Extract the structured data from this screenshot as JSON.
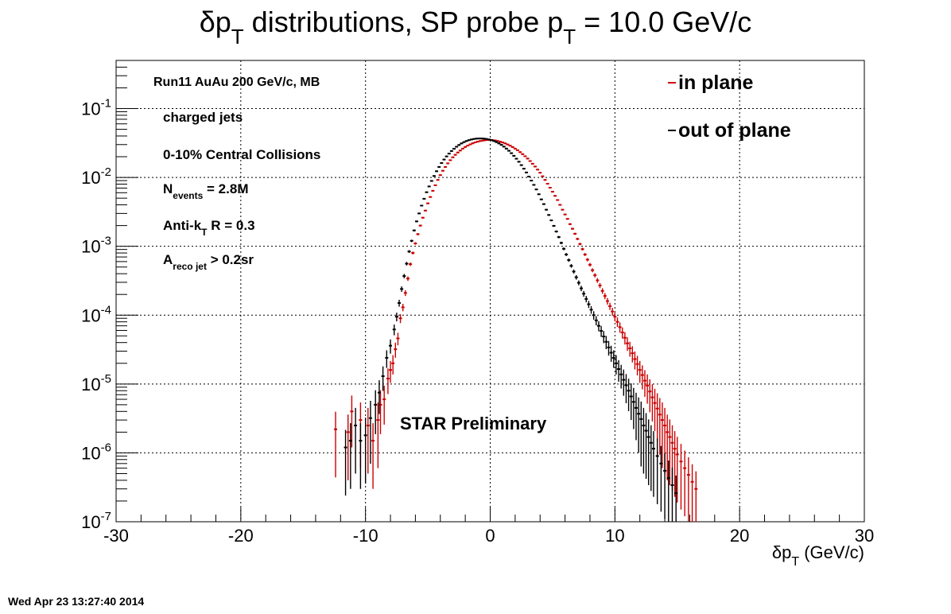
{
  "timestamp": "Wed Apr 23 13:27:40 2014",
  "chart_data": {
    "type": "scatter",
    "title": {
      "main": "δp",
      "sub": "T",
      "rest": " distributions, SP probe p",
      "sub2": "T",
      "tail": " = 10.0 GeV/c"
    },
    "xlabel": {
      "main": "δp",
      "sub": "T",
      "tail": " (GeV/c)"
    },
    "ylabel": "",
    "xlim": [
      -30,
      30
    ],
    "ylim": [
      1e-07,
      0.5
    ],
    "yscale": "log",
    "grid": true,
    "x_ticks": [
      "-30",
      "-20",
      "-10",
      "0",
      "10",
      "20",
      "30"
    ],
    "y_ticks": [
      {
        "base": "10",
        "exp": "-7"
      },
      {
        "base": "10",
        "exp": "-6"
      },
      {
        "base": "10",
        "exp": "-5"
      },
      {
        "base": "10",
        "exp": "-4"
      },
      {
        "base": "10",
        "exp": "-3"
      },
      {
        "base": "10",
        "exp": "-2"
      },
      {
        "base": "10",
        "exp": "-1"
      }
    ],
    "info_lines": [
      {
        "text": "Run11 AuAu 200 GeV/c, MB"
      },
      {
        "text": "charged jets"
      },
      {
        "text": "0-10% Central Collisions"
      },
      {
        "text": "N",
        "sub": "events",
        "tail": " = 2.8M"
      },
      {
        "text": "Anti-k",
        "sub": "T",
        "tail": "   R = 0.3"
      },
      {
        "text": "A",
        "sub": "reco jet",
        "tail": " > 0.2sr"
      }
    ],
    "annotation": "STAR Preliminary",
    "legend_position": "top-right",
    "series": [
      {
        "name": "in plane",
        "color": "#cc0000",
        "points": [
          [
            -12.4,
            2.2e-06
          ],
          [
            -11.4,
            2e-06
          ],
          [
            -11.1,
            4e-06
          ],
          [
            -10.4,
            3e-06
          ],
          [
            -9.8,
            2.5e-06
          ],
          [
            -9.4,
            1.5e-06
          ],
          [
            -9.0,
            3e-06
          ],
          [
            -8.8,
            5e-06
          ],
          [
            -8.5,
            6e-06
          ],
          [
            -8.2,
            1.2e-05
          ],
          [
            -8.0,
            1.6e-05
          ],
          [
            -7.8,
            2e-05
          ],
          [
            -7.6,
            3.2e-05
          ],
          [
            -7.4,
            4.6e-05
          ],
          [
            -7.2,
            9e-05
          ],
          [
            -7.0,
            0.00013
          ],
          [
            -6.8,
            0.00021
          ],
          [
            -6.6,
            0.00034
          ],
          [
            -6.4,
            0.00055
          ],
          [
            -6.2,
            0.0008
          ],
          [
            -6.0,
            0.0011
          ],
          [
            -5.8,
            0.0015
          ],
          [
            -5.6,
            0.002
          ],
          [
            -5.4,
            0.0026
          ],
          [
            -5.2,
            0.0033
          ],
          [
            -5.0,
            0.0042
          ],
          [
            -4.8,
            0.0052
          ],
          [
            -4.6,
            0.0064
          ],
          [
            -4.4,
            0.0077
          ],
          [
            -4.2,
            0.0092
          ],
          [
            -4.0,
            0.0108
          ],
          [
            -3.8,
            0.0125
          ],
          [
            -3.6,
            0.0142
          ],
          [
            -3.4,
            0.016
          ],
          [
            -3.2,
            0.0178
          ],
          [
            -3.0,
            0.0196
          ],
          [
            -2.8,
            0.0213
          ],
          [
            -2.6,
            0.023
          ],
          [
            -2.4,
            0.0246
          ],
          [
            -2.2,
            0.0262
          ],
          [
            -2.0,
            0.0277
          ],
          [
            -1.8,
            0.029
          ],
          [
            -1.6,
            0.0302
          ],
          [
            -1.4,
            0.0313
          ],
          [
            -1.2,
            0.0323
          ],
          [
            -1.0,
            0.0331
          ],
          [
            -0.8,
            0.0338
          ],
          [
            -0.6,
            0.0343
          ],
          [
            -0.4,
            0.0347
          ],
          [
            -0.2,
            0.035
          ],
          [
            0.0,
            0.035
          ],
          [
            0.2,
            0.0348
          ],
          [
            0.4,
            0.0344
          ],
          [
            0.6,
            0.0338
          ],
          [
            0.8,
            0.033
          ],
          [
            1.0,
            0.0322
          ],
          [
            1.2,
            0.0312
          ],
          [
            1.4,
            0.0301
          ],
          [
            1.6,
            0.0289
          ],
          [
            1.8,
            0.0276
          ],
          [
            2.0,
            0.0262
          ],
          [
            2.2,
            0.0248
          ],
          [
            2.4,
            0.0233
          ],
          [
            2.6,
            0.0218
          ],
          [
            2.8,
            0.0203
          ],
          [
            3.0,
            0.0188
          ],
          [
            3.2,
            0.0173
          ],
          [
            3.4,
            0.0158
          ],
          [
            3.6,
            0.0144
          ],
          [
            3.8,
            0.013
          ],
          [
            4.0,
            0.0117
          ],
          [
            4.2,
            0.0104
          ],
          [
            4.4,
            0.0092
          ],
          [
            4.6,
            0.0081
          ],
          [
            4.8,
            0.0071
          ],
          [
            5.0,
            0.0062
          ],
          [
            5.2,
            0.0054
          ],
          [
            5.4,
            0.0047
          ],
          [
            5.6,
            0.004
          ],
          [
            5.8,
            0.0034
          ],
          [
            6.0,
            0.0029
          ],
          [
            6.2,
            0.0025
          ],
          [
            6.4,
            0.0021
          ],
          [
            6.6,
            0.0018
          ],
          [
            6.8,
            0.00152
          ],
          [
            7.0,
            0.00128
          ],
          [
            7.2,
            0.00108
          ],
          [
            7.4,
            0.00091
          ],
          [
            7.6,
            0.00076
          ],
          [
            7.8,
            0.00064
          ],
          [
            8.0,
            0.00054
          ],
          [
            8.2,
            0.00045
          ],
          [
            8.4,
            0.00038
          ],
          [
            8.6,
            0.00032
          ],
          [
            8.8,
            0.00027
          ],
          [
            9.0,
            0.000225
          ],
          [
            9.2,
            0.00019
          ],
          [
            9.4,
            0.00016
          ],
          [
            9.6,
            0.000135
          ],
          [
            9.8,
            0.000113
          ],
          [
            10.0,
            9.5e-05
          ],
          [
            10.2,
            8e-05
          ],
          [
            10.4,
            6.7e-05
          ],
          [
            10.6,
            5.6e-05
          ],
          [
            10.8,
            4.7e-05
          ],
          [
            11.0,
            3.9e-05
          ],
          [
            11.2,
            3.3e-05
          ],
          [
            11.4,
            2.8e-05
          ],
          [
            11.6,
            2.3e-05
          ],
          [
            11.8,
            1.95e-05
          ],
          [
            12.0,
            1.6e-05
          ],
          [
            12.2,
            1.35e-05
          ],
          [
            12.4,
            1.12e-05
          ],
          [
            12.6,
            9.5e-06
          ],
          [
            12.8,
            7.8e-06
          ],
          [
            13.0,
            6.4e-06
          ],
          [
            13.2,
            5.3e-06
          ],
          [
            13.4,
            4.4e-06
          ],
          [
            13.6,
            3.6e-06
          ],
          [
            13.8,
            3e-06
          ],
          [
            14.0,
            2.5e-06
          ],
          [
            14.2,
            2e-06
          ],
          [
            14.4,
            1.7e-06
          ],
          [
            14.6,
            1.4e-06
          ],
          [
            14.8,
            1.15e-06
          ],
          [
            15.0,
            9.5e-07
          ],
          [
            15.3,
            7.5e-07
          ],
          [
            15.6,
            6e-07
          ],
          [
            15.9,
            4.8e-07
          ],
          [
            16.2,
            3.8e-07
          ],
          [
            16.5,
            3e-07
          ]
        ]
      },
      {
        "name": "out of plane",
        "color": "#000000",
        "points": [
          [
            -11.6,
            1.2e-06
          ],
          [
            -11.2,
            1.5e-06
          ],
          [
            -10.8,
            2.5e-06
          ],
          [
            -10.4,
            1.5e-06
          ],
          [
            -10.0,
            1.8e-06
          ],
          [
            -9.6,
            3.2e-06
          ],
          [
            -9.2,
            5e-06
          ],
          [
            -8.9,
            7.5e-06
          ],
          [
            -8.6,
            1.3e-05
          ],
          [
            -8.3,
            2.4e-05
          ],
          [
            -8.0,
            3.6e-05
          ],
          [
            -7.7,
            6.2e-05
          ],
          [
            -7.5,
            9.5e-05
          ],
          [
            -7.3,
            0.00015
          ],
          [
            -7.1,
            0.00024
          ],
          [
            -6.9,
            0.00037
          ],
          [
            -6.7,
            0.00056
          ],
          [
            -6.5,
            0.00084
          ],
          [
            -6.3,
            0.0012
          ],
          [
            -6.1,
            0.0017
          ],
          [
            -5.9,
            0.0023
          ],
          [
            -5.7,
            0.003
          ],
          [
            -5.5,
            0.0039
          ],
          [
            -5.3,
            0.0049
          ],
          [
            -5.1,
            0.0061
          ],
          [
            -4.9,
            0.0074
          ],
          [
            -4.7,
            0.0089
          ],
          [
            -4.5,
            0.0105
          ],
          [
            -4.3,
            0.0123
          ],
          [
            -4.1,
            0.0142
          ],
          [
            -3.9,
            0.0162
          ],
          [
            -3.7,
            0.0182
          ],
          [
            -3.5,
            0.0202
          ],
          [
            -3.3,
            0.0222
          ],
          [
            -3.1,
            0.0242
          ],
          [
            -2.9,
            0.0261
          ],
          [
            -2.7,
            0.0279
          ],
          [
            -2.5,
            0.0296
          ],
          [
            -2.3,
            0.0312
          ],
          [
            -2.1,
            0.0326
          ],
          [
            -1.9,
            0.0338
          ],
          [
            -1.7,
            0.0348
          ],
          [
            -1.5,
            0.0356
          ],
          [
            -1.3,
            0.0362
          ],
          [
            -1.1,
            0.0366
          ],
          [
            -0.9,
            0.0368
          ],
          [
            -0.7,
            0.0368
          ],
          [
            -0.5,
            0.0366
          ],
          [
            -0.3,
            0.0362
          ],
          [
            -0.1,
            0.0356
          ],
          [
            0.1,
            0.0348
          ],
          [
            0.3,
            0.0338
          ],
          [
            0.5,
            0.0326
          ],
          [
            0.7,
            0.0312
          ],
          [
            0.9,
            0.0297
          ],
          [
            1.1,
            0.028
          ],
          [
            1.3,
            0.0262
          ],
          [
            1.5,
            0.0244
          ],
          [
            1.7,
            0.0225
          ],
          [
            1.9,
            0.0206
          ],
          [
            2.1,
            0.0187
          ],
          [
            2.3,
            0.0169
          ],
          [
            2.5,
            0.0151
          ],
          [
            2.7,
            0.0134
          ],
          [
            2.9,
            0.0118
          ],
          [
            3.1,
            0.0103
          ],
          [
            3.3,
            0.009
          ],
          [
            3.5,
            0.0078
          ],
          [
            3.7,
            0.0067
          ],
          [
            3.9,
            0.0057
          ],
          [
            4.1,
            0.0048
          ],
          [
            4.3,
            0.0041
          ],
          [
            4.5,
            0.0034
          ],
          [
            4.7,
            0.00285
          ],
          [
            4.9,
            0.00238
          ],
          [
            5.1,
            0.00198
          ],
          [
            5.3,
            0.00164
          ],
          [
            5.5,
            0.00136
          ],
          [
            5.7,
            0.00112
          ],
          [
            5.9,
            0.00092
          ],
          [
            6.1,
            0.00076
          ],
          [
            6.3,
            0.00063
          ],
          [
            6.5,
            0.00052
          ],
          [
            6.7,
            0.00043
          ],
          [
            6.9,
            0.000355
          ],
          [
            7.1,
            0.000295
          ],
          [
            7.3,
            0.000245
          ],
          [
            7.5,
            0.000205
          ],
          [
            7.7,
            0.000172
          ],
          [
            7.9,
            0.000144
          ],
          [
            8.1,
            0.00012
          ],
          [
            8.3,
            0.0001
          ],
          [
            8.5,
            8.4e-05
          ],
          [
            8.7,
            7e-05
          ],
          [
            8.9,
            5.9e-05
          ],
          [
            9.1,
            4.9e-05
          ],
          [
            9.3,
            4.1e-05
          ],
          [
            9.5,
            3.4e-05
          ],
          [
            9.7,
            2.85e-05
          ],
          [
            9.9,
            2.4e-05
          ],
          [
            10.1,
            2e-05
          ],
          [
            10.3,
            1.65e-05
          ],
          [
            10.5,
            1.38e-05
          ],
          [
            10.7,
            1.15e-05
          ],
          [
            10.9,
            9.6e-06
          ],
          [
            11.1,
            8e-06
          ],
          [
            11.3,
            6.6e-06
          ],
          [
            11.5,
            5.5e-06
          ],
          [
            11.7,
            4.5e-06
          ],
          [
            11.9,
            3.7e-06
          ],
          [
            12.1,
            3.1e-06
          ],
          [
            12.3,
            2.5e-06
          ],
          [
            12.5,
            2.1e-06
          ],
          [
            12.7,
            1.7e-06
          ],
          [
            12.9,
            1.4e-06
          ],
          [
            13.1,
            1.15e-06
          ],
          [
            13.4,
            9e-07
          ],
          [
            13.7,
            7e-07
          ],
          [
            14.0,
            5.5e-07
          ],
          [
            14.3,
            4.3e-07
          ],
          [
            14.6,
            3.4e-07
          ],
          [
            14.9,
            2.6e-07
          ]
        ]
      }
    ]
  }
}
